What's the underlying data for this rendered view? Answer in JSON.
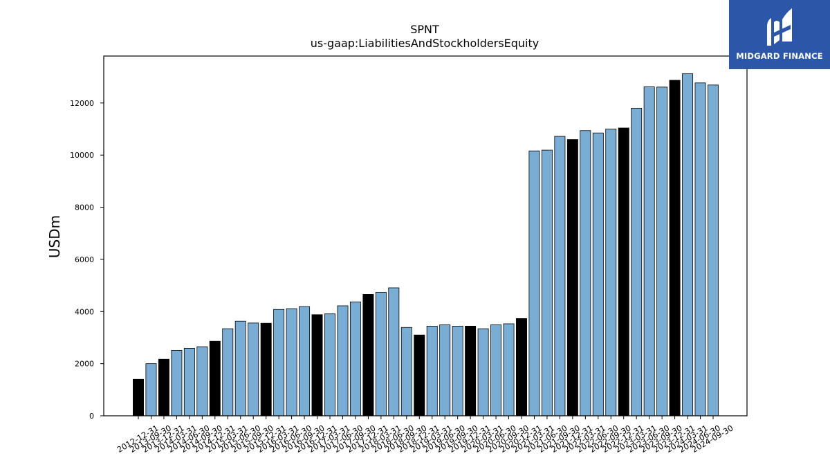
{
  "chart_data": {
    "type": "bar",
    "title": "SPNT",
    "subtitle": "us-gaap:LiabilitiesAndStockholdersEquity",
    "xlabel": "",
    "ylabel": "USDm",
    "ylim": [
      0,
      13800
    ],
    "yticks": [
      0,
      2000,
      4000,
      6000,
      8000,
      10000,
      12000
    ],
    "grid": false,
    "colors": {
      "quarter": "#7aadd4",
      "year_end": "#000000",
      "edge": "#000000"
    },
    "categories": [
      "2012-12-31",
      "2013-09-30",
      "2013-12-31",
      "2014-03-31",
      "2014-06-30",
      "2014-09-30",
      "2014-12-31",
      "2015-03-31",
      "2015-06-30",
      "2015-09-30",
      "2015-12-31",
      "2016-03-31",
      "2016-06-30",
      "2016-09-30",
      "2016-12-31",
      "2017-03-31",
      "2017-06-30",
      "2017-09-30",
      "2017-12-31",
      "2018-03-31",
      "2018-06-30",
      "2018-09-30",
      "2018-12-31",
      "2019-03-31",
      "2019-06-30",
      "2019-09-30",
      "2019-12-31",
      "2020-03-31",
      "2020-06-30",
      "2020-09-30",
      "2020-12-31",
      "2021-03-31",
      "2021-06-30",
      "2021-09-30",
      "2021-12-31",
      "2022-03-31",
      "2022-06-30",
      "2022-09-30",
      "2022-12-31",
      "2023-03-31",
      "2023-06-30",
      "2023-09-30",
      "2023-12-31",
      "2024-03-31",
      "2024-06-30",
      "2024-09-30"
    ],
    "values": [
      1400,
      2000,
      2170,
      2510,
      2590,
      2650,
      2860,
      3340,
      3630,
      3560,
      3550,
      4080,
      4110,
      4190,
      3880,
      3910,
      4220,
      4370,
      4660,
      4740,
      4910,
      3390,
      3100,
      3440,
      3490,
      3440,
      3440,
      3340,
      3490,
      3530,
      3730,
      10160,
      10190,
      10720,
      10600,
      10940,
      10850,
      11000,
      11040,
      11800,
      12620,
      12610,
      12870,
      13120,
      12770,
      12690
    ],
    "year_end": [
      true,
      false,
      true,
      false,
      false,
      false,
      true,
      false,
      false,
      false,
      true,
      false,
      false,
      false,
      true,
      false,
      false,
      false,
      true,
      false,
      false,
      false,
      true,
      false,
      false,
      false,
      true,
      false,
      false,
      false,
      true,
      false,
      false,
      false,
      true,
      false,
      false,
      false,
      true,
      false,
      false,
      false,
      true,
      false,
      false,
      false
    ]
  },
  "logo": {
    "text": "MIDGARD FINANCE",
    "icon": "midgard-logo-icon"
  }
}
